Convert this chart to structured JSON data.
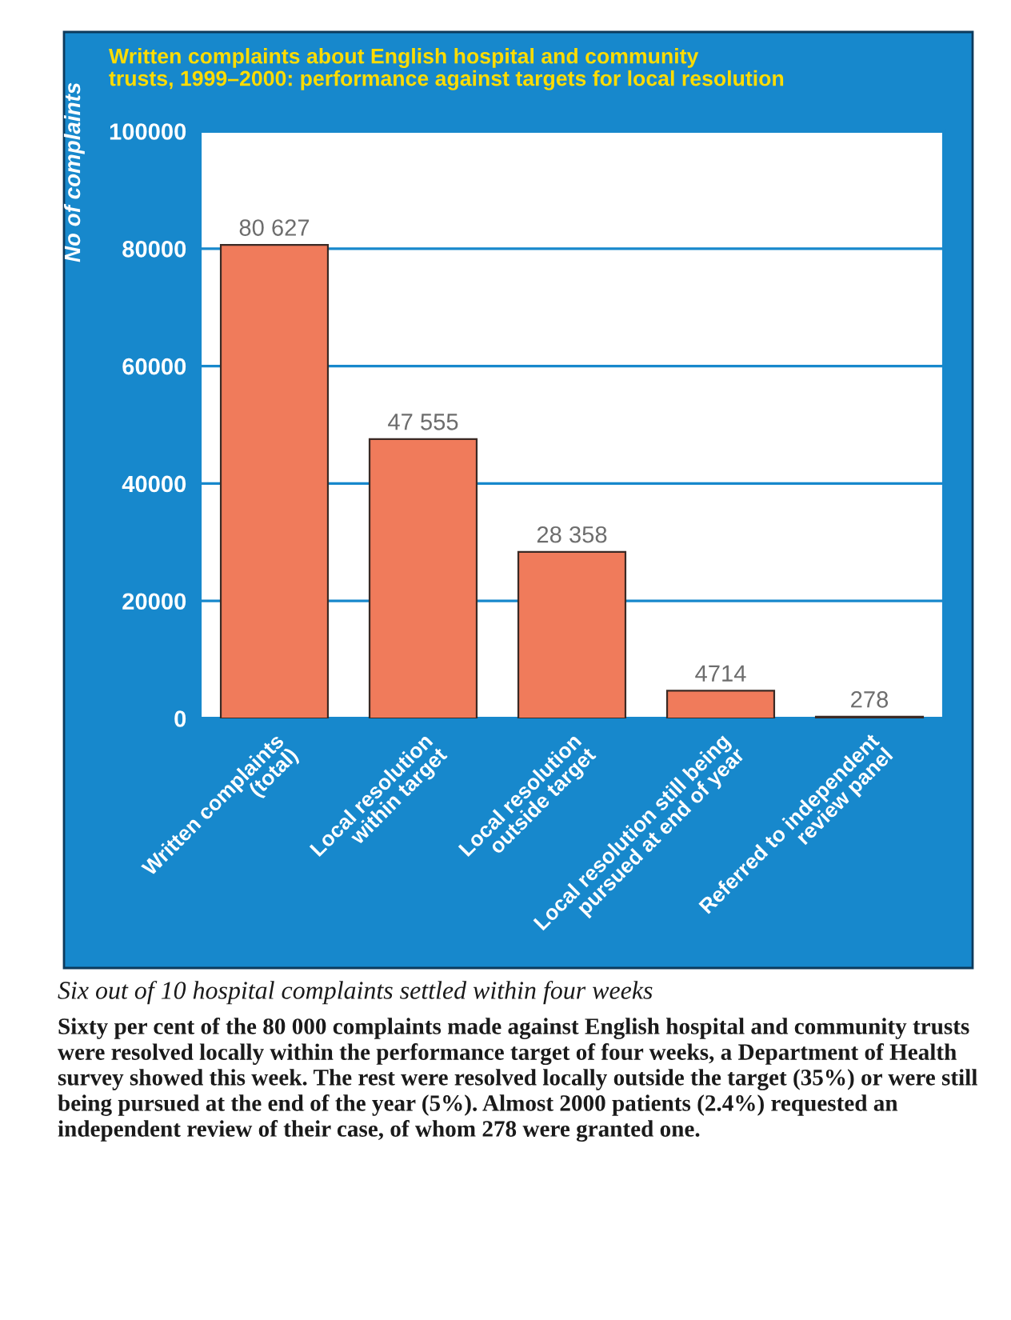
{
  "chart_data": {
    "type": "bar",
    "title": "Written complaints about English hospital and community\ntrusts, 1999–2000: performance against targets for local resolution",
    "ylabel": "No of complaints",
    "categories": [
      "Written complaints\n(total)",
      "Local resolution\nwithin target",
      "Local resolution\noutside target",
      "Local resolution still being\npursued at end of year",
      "Referred to independent\nreview panel"
    ],
    "values": [
      80627,
      47555,
      28358,
      4714,
      278
    ],
    "value_labels": [
      "80 627",
      "47 555",
      "28 358",
      "4714",
      "278"
    ],
    "color": "#f07b5b",
    "ylim": [
      0,
      100000
    ],
    "yticks": [
      0,
      20000,
      40000,
      60000,
      80000,
      100000
    ],
    "grid": "y",
    "annotations": [
      "Six out of 10 hospital complaints settled within four weeks",
      "Sixty per cent of the 80 000 complaints made against English hospital and community trusts were resolved locally within the performance target of four weeks, a Department of Health survey showed this week. The rest were resolved locally outside the target (35%) or were still being pursued at the end of the year (5%). Almost 2000 patients (2.4%) requested an independent review of their case, of whom 278 were granted one."
    ]
  }
}
